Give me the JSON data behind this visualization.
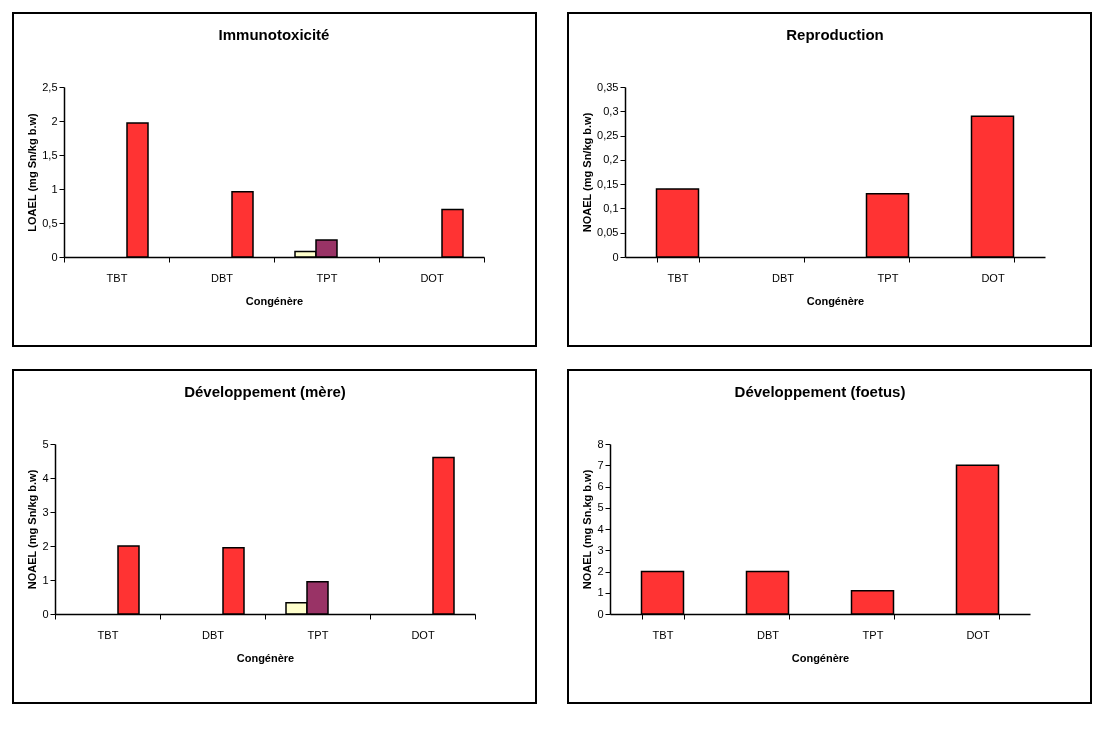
{
  "chart_data": [
    {
      "type": "bar",
      "title": "Immunotoxicité",
      "xlabel": "Congénère",
      "ylabel": "LOAEL (mg Sn/kg b.w)",
      "categories": [
        "TBT",
        "DBT",
        "TPT",
        "DOT"
      ],
      "ylim": [
        0,
        2.5
      ],
      "yticks": [
        {
          "value": 0,
          "label": "0"
        },
        {
          "value": 0.5,
          "label": "0,5"
        },
        {
          "value": 1,
          "label": "1"
        },
        {
          "value": 1.5,
          "label": "1,5"
        },
        {
          "value": 2,
          "label": "2"
        },
        {
          "value": 2.5,
          "label": "2,5"
        }
      ],
      "grid": false,
      "legend": false,
      "series": [
        {
          "color": "#ffffcc",
          "values": [
            null,
            null,
            0.08,
            null
          ]
        },
        {
          "color": "#993366",
          "values": [
            null,
            null,
            0.25,
            null
          ]
        },
        {
          "color": "#ff3333",
          "values": [
            1.97,
            0.96,
            null,
            0.7
          ]
        }
      ]
    },
    {
      "type": "bar",
      "title": "Reproduction",
      "xlabel": "Congénère",
      "ylabel": "NOAEL (mg Sn/kg b.w)",
      "categories": [
        "TBT",
        "DBT",
        "TPT",
        "DOT"
      ],
      "ylim": [
        0,
        0.35
      ],
      "yticks": [
        {
          "value": 0,
          "label": "0"
        },
        {
          "value": 0.05,
          "label": "0,05"
        },
        {
          "value": 0.1,
          "label": "0,1"
        },
        {
          "value": 0.15,
          "label": "0,15"
        },
        {
          "value": 0.2,
          "label": "0,2"
        },
        {
          "value": 0.25,
          "label": "0,25"
        },
        {
          "value": 0.3,
          "label": "0,3"
        },
        {
          "value": 0.35,
          "label": "0,35"
        }
      ],
      "grid": false,
      "legend": false,
      "series": [
        {
          "color": "#ff3333",
          "values": [
            0.14,
            null,
            0.13,
            0.29
          ]
        }
      ]
    },
    {
      "type": "bar",
      "title": "Développement (mère)",
      "xlabel": "Congénère",
      "ylabel": "NOAEL (mg Sn/kg b.w)",
      "categories": [
        "TBT",
        "DBT",
        "TPT",
        "DOT"
      ],
      "ylim": [
        0,
        5
      ],
      "yticks": [
        0,
        1,
        2,
        3,
        4,
        5
      ],
      "grid": false,
      "legend": false,
      "series": [
        {
          "color": "#ffffcc",
          "values": [
            null,
            null,
            0.33,
            null
          ]
        },
        {
          "color": "#993366",
          "values": [
            null,
            null,
            0.95,
            null
          ]
        },
        {
          "color": "#ff3333",
          "values": [
            2.0,
            1.95,
            null,
            4.6
          ]
        }
      ]
    },
    {
      "type": "bar",
      "title": "Développement (foetus)",
      "xlabel": "Congénère",
      "ylabel": "NOAEL (mg Sn.kg b.w)",
      "categories": [
        "TBT",
        "DBT",
        "TPT",
        "DOT"
      ],
      "ylim": [
        0,
        8
      ],
      "yticks": [
        0,
        1,
        2,
        3,
        4,
        5,
        6,
        7,
        8
      ],
      "grid": false,
      "legend": false,
      "series": [
        {
          "color": "#ff3333",
          "values": [
            2,
            2,
            1.1,
            7
          ]
        }
      ]
    }
  ]
}
